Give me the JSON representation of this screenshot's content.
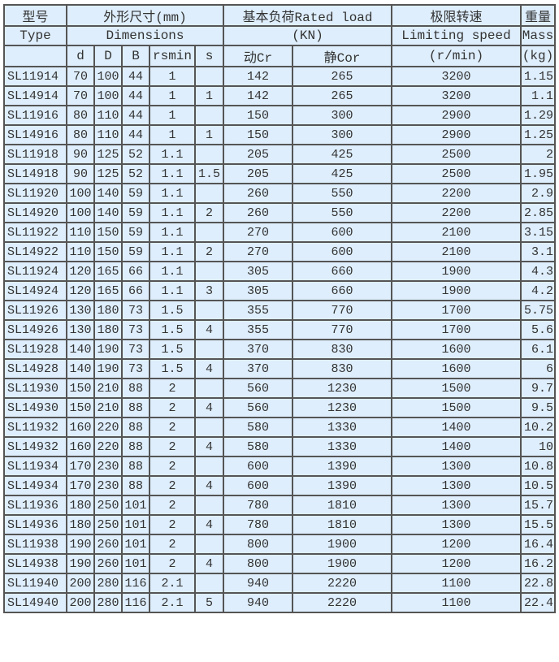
{
  "header": {
    "type_cn": "型号",
    "type_en": "Type",
    "dims_cn": "外形尺寸(mm)",
    "dims_en": "Dimensions",
    "load_cn": "基本负荷Rated load",
    "load_unit": "(KN)",
    "speed_cn": "极限转速",
    "speed_en": "Limiting speed",
    "speed_unit": "(r/min)",
    "mass_cn": "重量",
    "mass_en": "Mass",
    "mass_unit": "(kg)",
    "cols": [
      "d",
      "D",
      "B",
      "rsmin",
      "s",
      "动Cr",
      "静Cor"
    ]
  },
  "colors": {
    "cell_bg": "#deeefc",
    "border": "#555555"
  },
  "rows": [
    [
      "SL11914",
      "70",
      "100",
      "44",
      "1",
      "",
      "142",
      "265",
      "3200",
      "1.15"
    ],
    [
      "SL14914",
      "70",
      "100",
      "44",
      "1",
      "1",
      "142",
      "265",
      "3200",
      "1.1"
    ],
    [
      "SL11916",
      "80",
      "110",
      "44",
      "1",
      "",
      "150",
      "300",
      "2900",
      "1.29"
    ],
    [
      "SL14916",
      "80",
      "110",
      "44",
      "1",
      "1",
      "150",
      "300",
      "2900",
      "1.25"
    ],
    [
      "SL11918",
      "90",
      "125",
      "52",
      "1.1",
      "",
      "205",
      "425",
      "2500",
      "2"
    ],
    [
      "SL14918",
      "90",
      "125",
      "52",
      "1.1",
      "1.5",
      "205",
      "425",
      "2500",
      "1.95"
    ],
    [
      "SL11920",
      "100",
      "140",
      "59",
      "1.1",
      "",
      "260",
      "550",
      "2200",
      "2.9"
    ],
    [
      "SL14920",
      "100",
      "140",
      "59",
      "1.1",
      "2",
      "260",
      "550",
      "2200",
      "2.85"
    ],
    [
      "SL11922",
      "110",
      "150",
      "59",
      "1.1",
      "",
      "270",
      "600",
      "2100",
      "3.15"
    ],
    [
      "SL14922",
      "110",
      "150",
      "59",
      "1.1",
      "2",
      "270",
      "600",
      "2100",
      "3.1"
    ],
    [
      "SL11924",
      "120",
      "165",
      "66",
      "1.1",
      "",
      "305",
      "660",
      "1900",
      "4.3"
    ],
    [
      "SL14924",
      "120",
      "165",
      "66",
      "1.1",
      "3",
      "305",
      "660",
      "1900",
      "4.2"
    ],
    [
      "SL11926",
      "130",
      "180",
      "73",
      "1.5",
      "",
      "355",
      "770",
      "1700",
      "5.75"
    ],
    [
      "SL14926",
      "130",
      "180",
      "73",
      "1.5",
      "4",
      "355",
      "770",
      "1700",
      "5.6"
    ],
    [
      "SL11928",
      "140",
      "190",
      "73",
      "1.5",
      "",
      "370",
      "830",
      "1600",
      "6.1"
    ],
    [
      "SL14928",
      "140",
      "190",
      "73",
      "1.5",
      "4",
      "370",
      "830",
      "1600",
      "6"
    ],
    [
      "SL11930",
      "150",
      "210",
      "88",
      "2",
      "",
      "560",
      "1230",
      "1500",
      "9.7"
    ],
    [
      "SL14930",
      "150",
      "210",
      "88",
      "2",
      "4",
      "560",
      "1230",
      "1500",
      "9.5"
    ],
    [
      "SL11932",
      "160",
      "220",
      "88",
      "2",
      "",
      "580",
      "1330",
      "1400",
      "10.2"
    ],
    [
      "SL14932",
      "160",
      "220",
      "88",
      "2",
      "4",
      "580",
      "1330",
      "1400",
      "10"
    ],
    [
      "SL11934",
      "170",
      "230",
      "88",
      "2",
      "",
      "600",
      "1390",
      "1300",
      "10.8"
    ],
    [
      "SL14934",
      "170",
      "230",
      "88",
      "2",
      "4",
      "600",
      "1390",
      "1300",
      "10.5"
    ],
    [
      "SL11936",
      "180",
      "250",
      "101",
      "2",
      "",
      "780",
      "1810",
      "1300",
      "15.7"
    ],
    [
      "SL14936",
      "180",
      "250",
      "101",
      "2",
      "4",
      "780",
      "1810",
      "1300",
      "15.5"
    ],
    [
      "SL11938",
      "190",
      "260",
      "101",
      "2",
      "",
      "800",
      "1900",
      "1200",
      "16.4"
    ],
    [
      "SL14938",
      "190",
      "260",
      "101",
      "2",
      "4",
      "800",
      "1900",
      "1200",
      "16.2"
    ],
    [
      "SL11940",
      "200",
      "280",
      "116",
      "2.1",
      "",
      "940",
      "2220",
      "1100",
      "22.8"
    ],
    [
      "SL14940",
      "200",
      "280",
      "116",
      "2.1",
      "5",
      "940",
      "2220",
      "1100",
      "22.4"
    ]
  ]
}
